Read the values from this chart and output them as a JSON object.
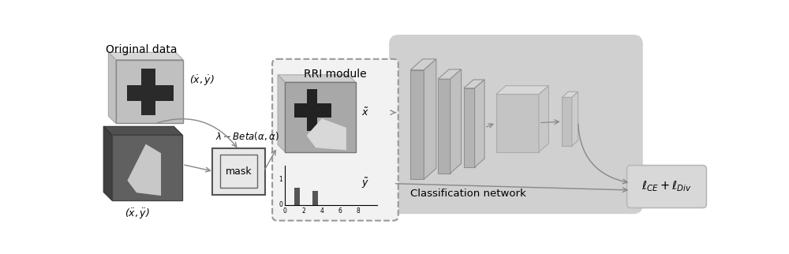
{
  "title": "Original data",
  "bg_color": "#ffffff",
  "gray_arrow": "#888888",
  "label_x1": "($\\dot{x}, \\dot{y}$)",
  "label_x2": "($\\ddot{x}, \\ddot{y}$)",
  "label_lambda": "$\\lambda{\\sim}Beta(\\alpha,\\alpha)$",
  "label_mask": "mask",
  "label_rri": "RRI module",
  "label_xtilde": "$\\tilde{x}$",
  "label_ytilde": "$\\tilde{y}$",
  "label_network": "Classification network",
  "label_loss": "$\\ell_{CE} + \\ell_{Div}$",
  "img1_color": "#c0c0c0",
  "img2_color": "#606060",
  "net_bg": "#d0d0d0",
  "rri_bg": "#f2f2f2",
  "mask_bg": "#e8e8e8",
  "loss_bg": "#d8d8d8",
  "slab_front": "#b8b8b8",
  "slab_top": "#d8d8d8",
  "slab_right": "#c8c8c8"
}
